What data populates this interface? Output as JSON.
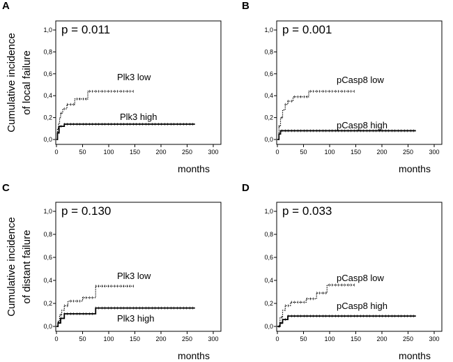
{
  "chart_data": [
    {
      "panel": "A",
      "type": "line",
      "annotation": "p = 0.011",
      "xlabel": "months",
      "ylabel": [
        "Cumulative incidence",
        "of local failure"
      ],
      "xlim": [
        0,
        300
      ],
      "ylim": [
        0,
        1.0
      ],
      "xticks": [
        "0",
        "50",
        "100",
        "150",
        "200",
        "250",
        "300"
      ],
      "yticks": [
        "0,0",
        "0,2",
        "0,4",
        "0,6",
        "0,8",
        "1,0"
      ],
      "grid": false,
      "series": [
        {
          "name": "Plk3 low",
          "style": "dotted",
          "x": [
            0,
            2,
            4,
            6,
            8,
            12,
            20,
            35,
            60,
            148
          ],
          "y": [
            0.0,
            0.1,
            0.15,
            0.2,
            0.24,
            0.28,
            0.32,
            0.37,
            0.44,
            0.44
          ]
        },
        {
          "name": "Plk3 high",
          "style": "solid",
          "x": [
            0,
            2,
            5,
            15,
            265
          ],
          "y": [
            0.0,
            0.06,
            0.12,
            0.14,
            0.14
          ]
        }
      ]
    },
    {
      "panel": "B",
      "type": "line",
      "annotation": "p = 0.001",
      "xlabel": "months",
      "ylabel": [],
      "xlim": [
        0,
        300
      ],
      "ylim": [
        0,
        1.0
      ],
      "xticks": [
        "0",
        "50",
        "100",
        "150",
        "200",
        "250",
        "300"
      ],
      "yticks": [
        "0,0",
        "0,2",
        "0,4",
        "0,6",
        "0,8",
        "1,0"
      ],
      "grid": false,
      "series": [
        {
          "name": "pCasp8 low",
          "style": "dotted",
          "x": [
            0,
            3,
            6,
            10,
            15,
            20,
            30,
            60,
            148
          ],
          "y": [
            0.0,
            0.12,
            0.2,
            0.27,
            0.32,
            0.35,
            0.39,
            0.44,
            0.44
          ]
        },
        {
          "name": "pCasp8 high",
          "style": "solid",
          "x": [
            0,
            3,
            6,
            265
          ],
          "y": [
            0.0,
            0.05,
            0.08,
            0.08
          ]
        }
      ]
    },
    {
      "panel": "C",
      "type": "line",
      "annotation": "p = 0.130",
      "xlabel": "months",
      "ylabel": [
        "Cumulative incidence",
        "of distant failure"
      ],
      "xlim": [
        0,
        300
      ],
      "ylim": [
        0,
        1.0
      ],
      "xticks": [
        "0",
        "50",
        "100",
        "150",
        "200",
        "250",
        "300"
      ],
      "yticks": [
        "0,0",
        "0,2",
        "0,4",
        "0,6",
        "0,8",
        "1,0"
      ],
      "grid": false,
      "series": [
        {
          "name": "Plk3 low",
          "style": "dotted",
          "x": [
            0,
            3,
            6,
            10,
            15,
            22,
            50,
            75,
            148
          ],
          "y": [
            0.0,
            0.04,
            0.1,
            0.14,
            0.18,
            0.22,
            0.25,
            0.35,
            0.35
          ]
        },
        {
          "name": "Plk3 high",
          "style": "solid",
          "x": [
            0,
            3,
            8,
            15,
            75,
            265
          ],
          "y": [
            0.0,
            0.03,
            0.07,
            0.11,
            0.16,
            0.16
          ]
        }
      ]
    },
    {
      "panel": "D",
      "type": "line",
      "annotation": "p = 0.033",
      "xlabel": "months",
      "ylabel": [],
      "xlim": [
        0,
        300
      ],
      "ylim": [
        0,
        1.0
      ],
      "xticks": [
        "0",
        "50",
        "100",
        "150",
        "200",
        "250",
        "300"
      ],
      "yticks": [
        "0,0",
        "0,2",
        "0,4",
        "0,6",
        "0,8",
        "1,0"
      ],
      "grid": false,
      "series": [
        {
          "name": "pCasp8 low",
          "style": "dotted",
          "x": [
            0,
            5,
            10,
            15,
            25,
            55,
            75,
            95,
            148
          ],
          "y": [
            0.0,
            0.08,
            0.14,
            0.18,
            0.21,
            0.24,
            0.29,
            0.36,
            0.36
          ]
        },
        {
          "name": "pCasp8 high",
          "style": "solid",
          "x": [
            0,
            5,
            10,
            20,
            265
          ],
          "y": [
            0.0,
            0.03,
            0.06,
            0.09,
            0.09
          ]
        }
      ]
    }
  ]
}
